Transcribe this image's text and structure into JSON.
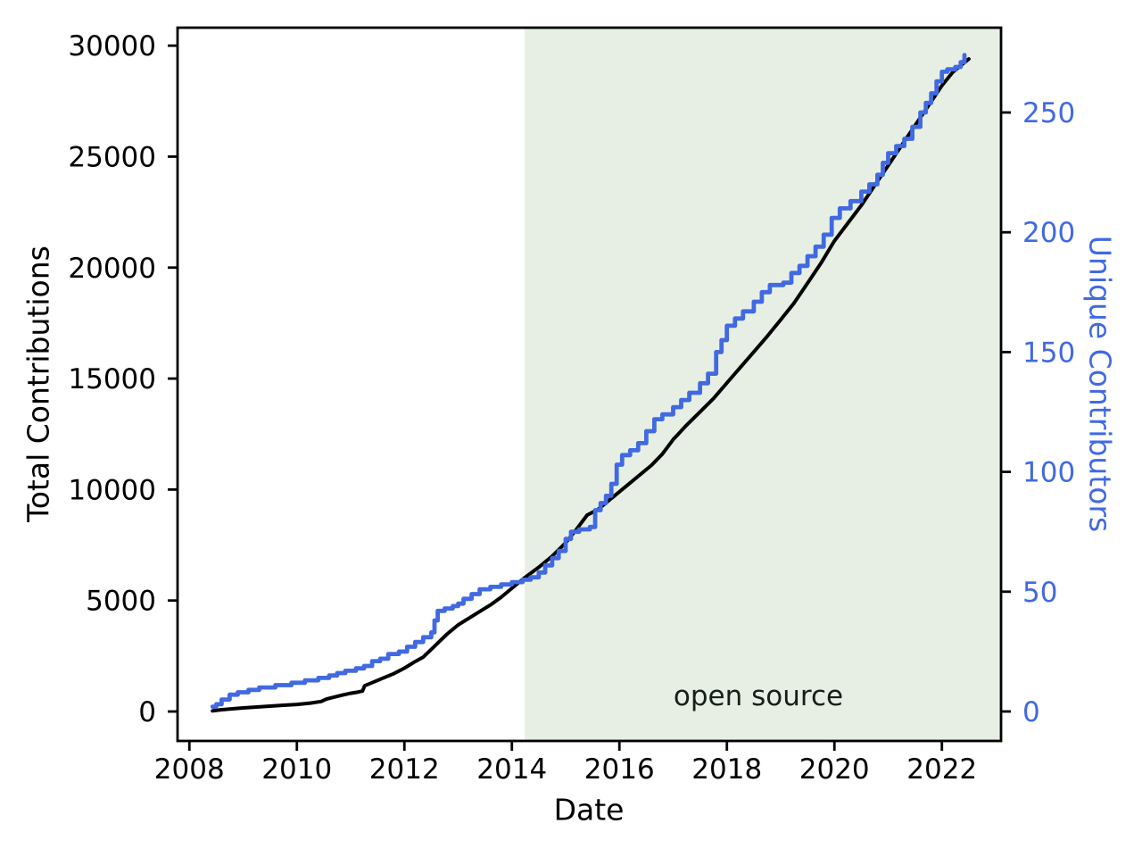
{
  "figure": {
    "background": "#ffffff"
  },
  "chart_data": {
    "type": "line",
    "title": "",
    "xlabel": "Date",
    "ylabel_left": "Total Contributions",
    "ylabel_right": "Unique Contributors",
    "grid": false,
    "legend": "none",
    "x_range": [
      2007.78,
      2023.1
    ],
    "y_left_range": [
      -1327,
      30810
    ],
    "y_right_range": [
      -12.3,
      285.4
    ],
    "x_ticks": [
      2008,
      2010,
      2012,
      2014,
      2016,
      2018,
      2020,
      2022
    ],
    "y_left_ticks": [
      0,
      5000,
      10000,
      15000,
      20000,
      25000,
      30000
    ],
    "y_right_ticks": [
      0,
      50,
      100,
      150,
      200,
      250
    ],
    "shaded_region": {
      "x_start": 2014.24,
      "x_end": 2023.1,
      "color": "#e7efe5"
    },
    "annotation": {
      "text": "open source",
      "x": 2018.59,
      "y_left": 684
    },
    "colors": {
      "total_contributions_line": "#000000",
      "unique_contributors_line": "#4169e1",
      "right_axis_text": "#4169e1",
      "left_axis_text": "#000000",
      "spine": "#000000"
    },
    "series": [
      {
        "name": "Total Contributions",
        "axis": "left",
        "color": "#000000",
        "line_width": 4,
        "interp": "linear",
        "points": [
          [
            2008.43,
            30
          ],
          [
            2008.6,
            80
          ],
          [
            2008.8,
            120
          ],
          [
            2009.0,
            160
          ],
          [
            2009.25,
            200
          ],
          [
            2009.5,
            240
          ],
          [
            2009.75,
            280
          ],
          [
            2010.0,
            320
          ],
          [
            2010.25,
            380
          ],
          [
            2010.45,
            450
          ],
          [
            2010.55,
            560
          ],
          [
            2010.7,
            650
          ],
          [
            2010.85,
            740
          ],
          [
            2011.0,
            820
          ],
          [
            2011.15,
            880
          ],
          [
            2011.22,
            920
          ],
          [
            2011.26,
            1160
          ],
          [
            2011.4,
            1300
          ],
          [
            2011.6,
            1500
          ],
          [
            2011.8,
            1700
          ],
          [
            2012.0,
            1950
          ],
          [
            2012.2,
            2250
          ],
          [
            2012.35,
            2450
          ],
          [
            2012.5,
            2800
          ],
          [
            2012.65,
            3150
          ],
          [
            2012.8,
            3500
          ],
          [
            2013.0,
            3900
          ],
          [
            2013.2,
            4200
          ],
          [
            2013.4,
            4500
          ],
          [
            2013.6,
            4800
          ],
          [
            2013.8,
            5150
          ],
          [
            2014.0,
            5550
          ],
          [
            2014.25,
            6050
          ],
          [
            2014.5,
            6500
          ],
          [
            2014.75,
            7000
          ],
          [
            2015.0,
            7600
          ],
          [
            2015.2,
            8200
          ],
          [
            2015.4,
            8850
          ],
          [
            2015.6,
            9100
          ],
          [
            2015.8,
            9500
          ],
          [
            2016.0,
            9900
          ],
          [
            2016.2,
            10300
          ],
          [
            2016.4,
            10700
          ],
          [
            2016.6,
            11100
          ],
          [
            2016.8,
            11600
          ],
          [
            2017.0,
            12250
          ],
          [
            2017.25,
            12900
          ],
          [
            2017.5,
            13500
          ],
          [
            2017.75,
            14100
          ],
          [
            2018.0,
            14800
          ],
          [
            2018.25,
            15500
          ],
          [
            2018.5,
            16200
          ],
          [
            2018.75,
            16900
          ],
          [
            2019.0,
            17650
          ],
          [
            2019.25,
            18400
          ],
          [
            2019.5,
            19300
          ],
          [
            2019.75,
            20200
          ],
          [
            2020.0,
            21200
          ],
          [
            2020.25,
            22000
          ],
          [
            2020.5,
            22800
          ],
          [
            2020.75,
            23700
          ],
          [
            2021.0,
            24600
          ],
          [
            2021.25,
            25500
          ],
          [
            2021.5,
            26400
          ],
          [
            2021.75,
            27300
          ],
          [
            2022.0,
            28200
          ],
          [
            2022.2,
            28800
          ],
          [
            2022.35,
            29100
          ],
          [
            2022.5,
            29400
          ]
        ]
      },
      {
        "name": "Unique Contributors",
        "axis": "right",
        "color": "#4169e1",
        "line_width": 4.8,
        "interp": "step",
        "points": [
          [
            2008.43,
            2
          ],
          [
            2008.5,
            3
          ],
          [
            2008.6,
            5
          ],
          [
            2008.75,
            7
          ],
          [
            2008.9,
            8
          ],
          [
            2009.1,
            9
          ],
          [
            2009.3,
            10
          ],
          [
            2009.6,
            11
          ],
          [
            2009.9,
            12
          ],
          [
            2010.15,
            13
          ],
          [
            2010.4,
            14
          ],
          [
            2010.6,
            15
          ],
          [
            2010.75,
            16
          ],
          [
            2010.9,
            17
          ],
          [
            2011.1,
            18
          ],
          [
            2011.25,
            19
          ],
          [
            2011.4,
            21
          ],
          [
            2011.55,
            22
          ],
          [
            2011.7,
            24
          ],
          [
            2011.9,
            25
          ],
          [
            2012.05,
            27
          ],
          [
            2012.2,
            29
          ],
          [
            2012.35,
            31
          ],
          [
            2012.5,
            33
          ],
          [
            2012.56,
            38
          ],
          [
            2012.62,
            42
          ],
          [
            2012.75,
            43
          ],
          [
            2012.9,
            44
          ],
          [
            2013.0,
            45
          ],
          [
            2013.1,
            47
          ],
          [
            2013.25,
            49
          ],
          [
            2013.4,
            51
          ],
          [
            2013.6,
            52
          ],
          [
            2013.8,
            53
          ],
          [
            2014.0,
            54
          ],
          [
            2014.2,
            55
          ],
          [
            2014.35,
            56
          ],
          [
            2014.5,
            58
          ],
          [
            2014.62,
            61
          ],
          [
            2014.75,
            64
          ],
          [
            2014.87,
            67
          ],
          [
            2015.0,
            72
          ],
          [
            2015.1,
            75
          ],
          [
            2015.25,
            76
          ],
          [
            2015.45,
            77
          ],
          [
            2015.55,
            84
          ],
          [
            2015.65,
            87
          ],
          [
            2015.75,
            90
          ],
          [
            2015.85,
            95
          ],
          [
            2015.95,
            103
          ],
          [
            2016.05,
            107
          ],
          [
            2016.2,
            109
          ],
          [
            2016.35,
            112
          ],
          [
            2016.5,
            117
          ],
          [
            2016.65,
            122
          ],
          [
            2016.8,
            124
          ],
          [
            2017.0,
            127
          ],
          [
            2017.15,
            130
          ],
          [
            2017.3,
            133
          ],
          [
            2017.5,
            137
          ],
          [
            2017.65,
            141
          ],
          [
            2017.8,
            150
          ],
          [
            2017.9,
            155
          ],
          [
            2018.0,
            161
          ],
          [
            2018.15,
            164
          ],
          [
            2018.3,
            167
          ],
          [
            2018.5,
            171
          ],
          [
            2018.65,
            175
          ],
          [
            2018.8,
            178
          ],
          [
            2019.05,
            179
          ],
          [
            2019.2,
            183
          ],
          [
            2019.35,
            186
          ],
          [
            2019.5,
            190
          ],
          [
            2019.65,
            194
          ],
          [
            2019.8,
            199
          ],
          [
            2019.95,
            206
          ],
          [
            2020.1,
            210
          ],
          [
            2020.3,
            213
          ],
          [
            2020.5,
            217
          ],
          [
            2020.65,
            220
          ],
          [
            2020.8,
            224
          ],
          [
            2020.9,
            229
          ],
          [
            2021.0,
            233
          ],
          [
            2021.15,
            236
          ],
          [
            2021.3,
            239
          ],
          [
            2021.45,
            244
          ],
          [
            2021.6,
            250
          ],
          [
            2021.7,
            254
          ],
          [
            2021.8,
            258
          ],
          [
            2021.9,
            263
          ],
          [
            2022.0,
            267
          ],
          [
            2022.1,
            268
          ],
          [
            2022.25,
            269
          ],
          [
            2022.35,
            271
          ],
          [
            2022.42,
            274
          ]
        ]
      }
    ]
  }
}
